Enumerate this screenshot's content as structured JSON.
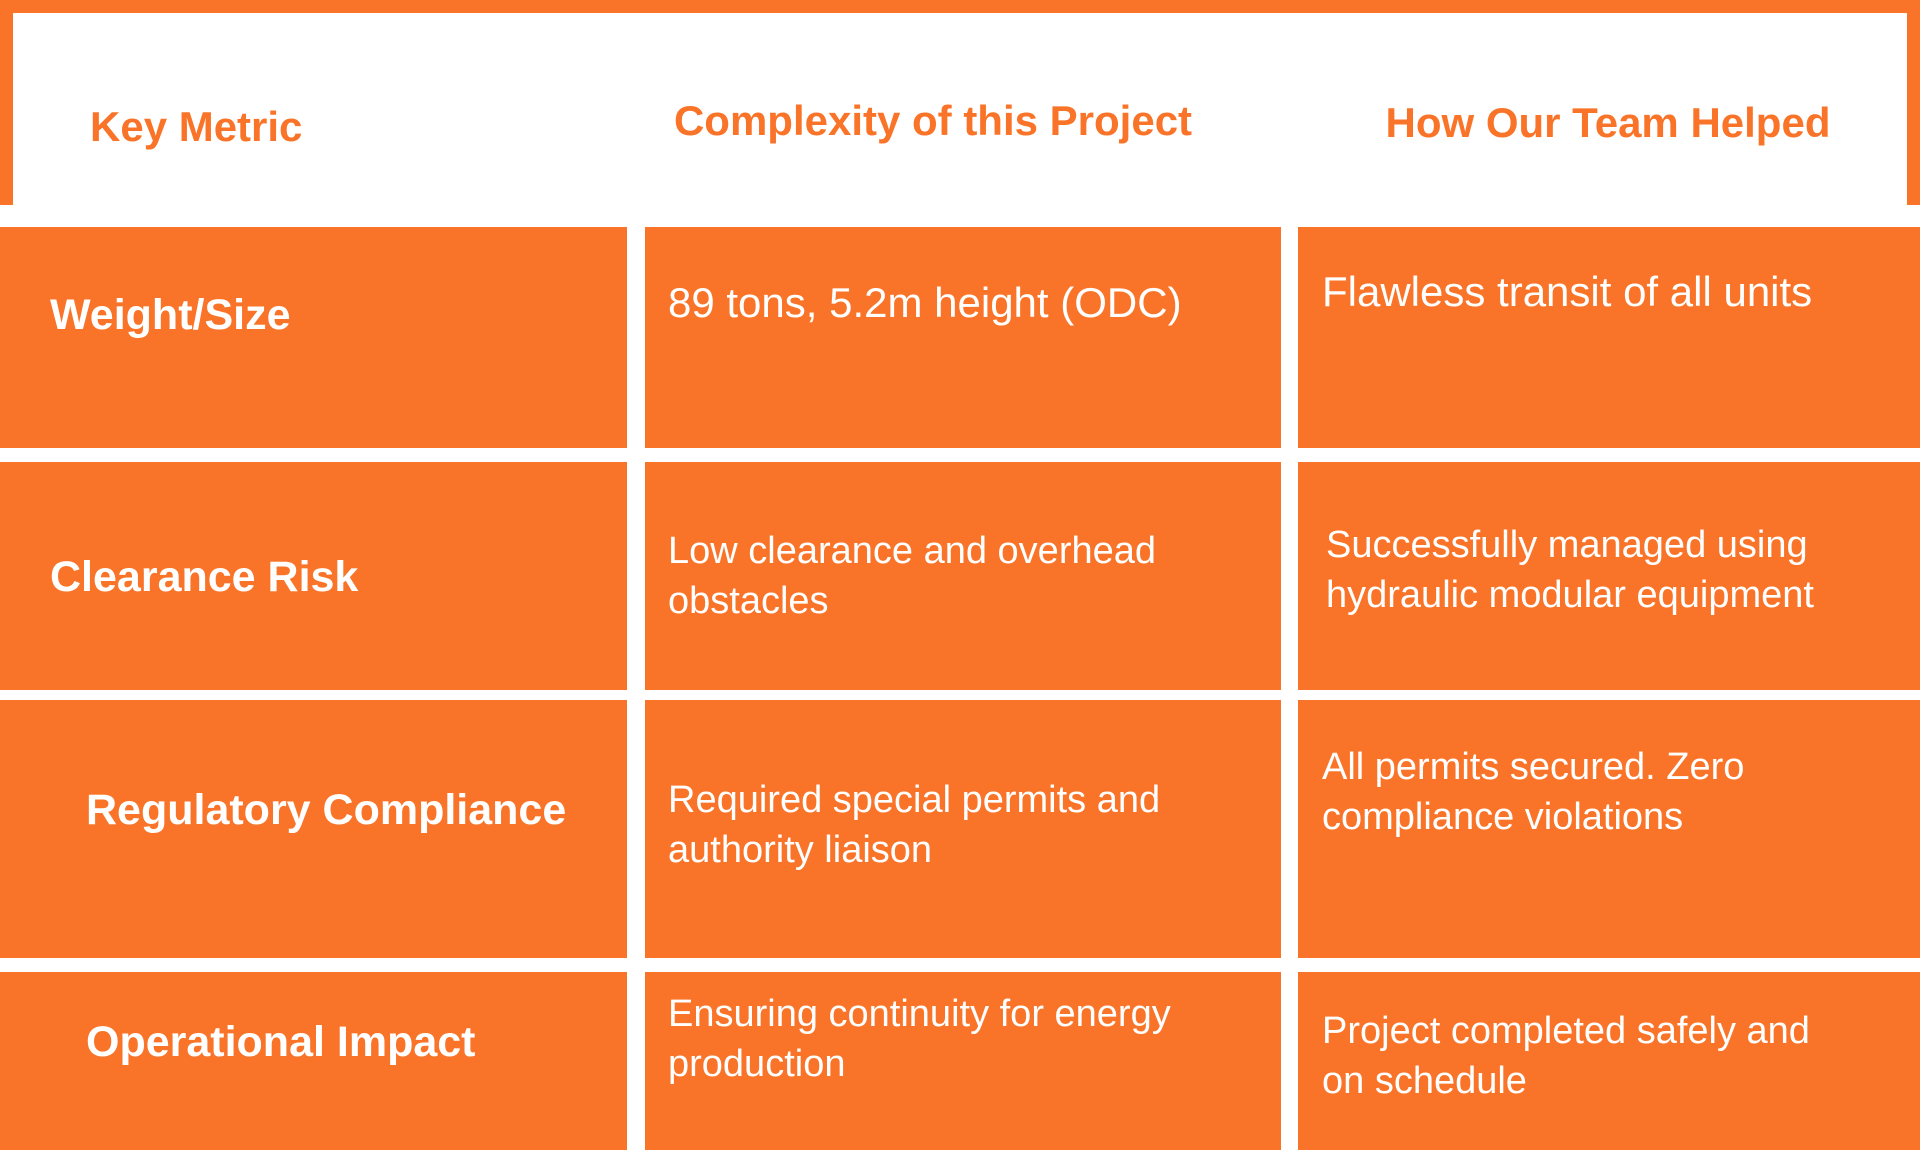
{
  "colors": {
    "accent": "#F97428",
    "text_on_accent": "#FFFFFF",
    "page_bg": "#FFFFFF"
  },
  "header": {
    "columns": [
      "Key Metric",
      "Complexity of this Project",
      "How Our Team Helped"
    ]
  },
  "rows": [
    {
      "metric": "Weight/Size",
      "complexity": "89 tons, 5.2m height (ODC)",
      "help": "Flawless transit of all units"
    },
    {
      "metric": "Clearance Risk",
      "complexity": "Low clearance and overhead\nobstacles",
      "help": "Successfully managed using\nhydraulic modular equipment"
    },
    {
      "metric": "Regulatory Compliance",
      "complexity": "Required special permits and\nauthority liaison",
      "help": "All permits secured. Zero\ncompliance violations"
    },
    {
      "metric": "Operational Impact",
      "complexity": "Ensuring continuity for energy\nproduction",
      "help": "Project completed safely and\non schedule"
    }
  ]
}
